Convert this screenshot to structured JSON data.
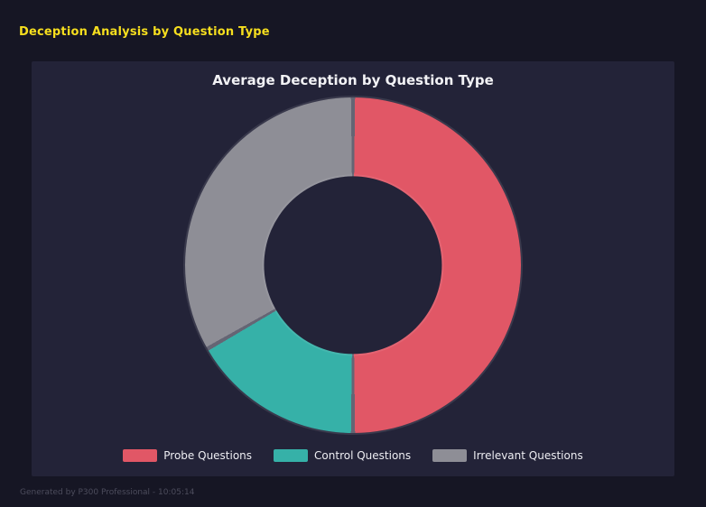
{
  "page": {
    "title": "Deception Analysis by Question Type",
    "footer": "Generated by P300 Professional - 10:05:14"
  },
  "chart_data": {
    "type": "pie",
    "subtype": "donut",
    "title": "Average Deception by Question Type",
    "categories": [
      "Probe Questions",
      "Control Questions",
      "Irrelevant Questions"
    ],
    "values": [
      50,
      16.7,
      33.3
    ],
    "colors": [
      "#e15766",
      "#36b1a8",
      "#8e8e96"
    ],
    "start_angle_deg": 0,
    "direction": "clockwise",
    "hole_ratio": 0.53,
    "legend_position": "bottom",
    "background": "#232338"
  }
}
